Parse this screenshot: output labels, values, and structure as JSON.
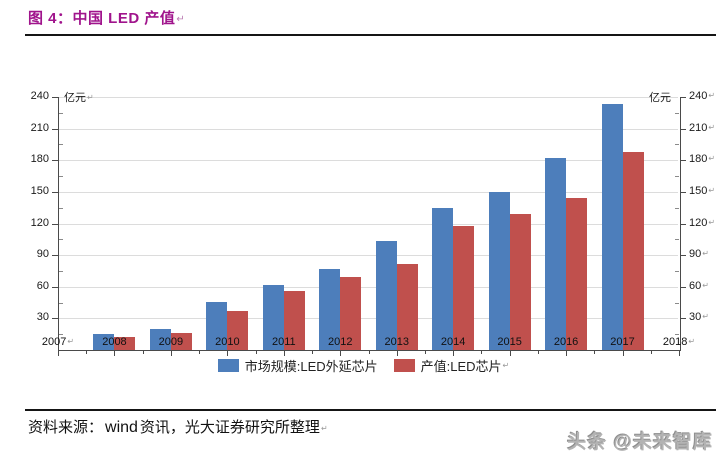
{
  "title": {
    "text": "图 4：中国 LED 产值"
  },
  "pilcrow": "↵",
  "chart_data": {
    "type": "bar",
    "title": "中国 LED 产值",
    "unit_label": "亿元",
    "ylabel": "亿元",
    "ylabel_right": "亿元",
    "ylim": [
      0,
      240
    ],
    "yticks": [
      30,
      60,
      90,
      120,
      150,
      180,
      210,
      240
    ],
    "grid": true,
    "legend_position": "bottom",
    "x_axis_labels": [
      "2007",
      "2008",
      "2009",
      "2010",
      "2011",
      "2012",
      "2013",
      "2014",
      "2015",
      "2016",
      "2017",
      "2018"
    ],
    "categories": [
      "2008",
      "2009",
      "2010",
      "2011",
      "2012",
      "2013",
      "2014",
      "2015",
      "2016",
      "2017"
    ],
    "series": [
      {
        "name": "市场规模:LED外延芯片",
        "color": "#4D7EBB",
        "values": [
          15,
          20,
          46,
          62,
          77,
          103,
          135,
          150,
          182,
          233
        ]
      },
      {
        "name": "产值:LED芯片",
        "color": "#C0504D",
        "values": [
          12,
          16,
          37,
          56,
          69,
          82,
          118,
          129,
          144,
          188
        ]
      }
    ]
  },
  "source": {
    "prefix": "资料来源：",
    "wind": "wind",
    "rest": "资讯，光大证券研究所整理"
  },
  "watermark": "头条 @未来智库",
  "colors": {
    "title": "#A0148C",
    "axis": "#4A4A4A",
    "gridline": "#DCDCDC",
    "bar_blue": "#4D7EBB",
    "bar_red": "#C0504D",
    "rule": "#151515",
    "watermark_gray": "#B3B3B3"
  }
}
